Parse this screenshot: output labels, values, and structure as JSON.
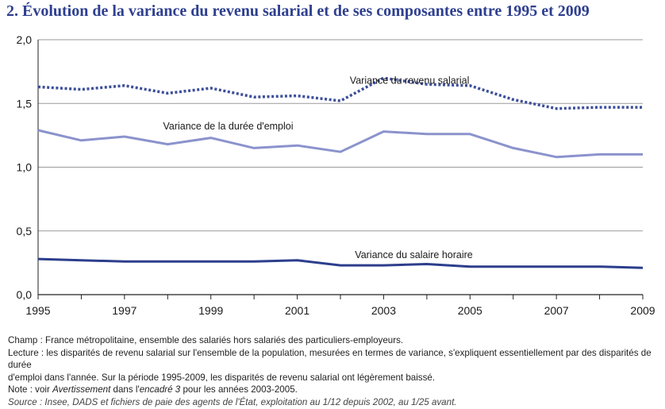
{
  "title": "2. Évolution de la variance du revenu salarial et de ses composantes entre 1995 et 2009",
  "chart_data": {
    "type": "line",
    "x": [
      1995,
      1996,
      1997,
      1998,
      1999,
      2000,
      2001,
      2002,
      2003,
      2004,
      2005,
      2006,
      2007,
      2008,
      2009
    ],
    "x_tick_labels": [
      "1995",
      "1997",
      "1999",
      "2001",
      "2003",
      "2005",
      "2007",
      "2009"
    ],
    "y_tick_labels": [
      "0,0",
      "0,5",
      "1,0",
      "1,5",
      "2,0"
    ],
    "ylim": [
      0,
      2
    ],
    "xlabel": "",
    "ylabel": "",
    "grid": "horizontal",
    "series": [
      {
        "name": "Variance du revenu salarial",
        "style": "dotted",
        "color": "#3d4f9a",
        "values": [
          1.63,
          1.61,
          1.64,
          1.58,
          1.62,
          1.55,
          1.56,
          1.52,
          1.7,
          1.65,
          1.64,
          1.53,
          1.46,
          1.47,
          1.47
        ]
      },
      {
        "name": "Variance de la durée d'emploi",
        "style": "solid",
        "color": "#8b93cc",
        "values": [
          1.29,
          1.21,
          1.24,
          1.18,
          1.23,
          1.15,
          1.17,
          1.12,
          1.28,
          1.26,
          1.26,
          1.15,
          1.08,
          1.1,
          1.1
        ]
      },
      {
        "name": "Variance du salaire horaire",
        "style": "solid",
        "color": "#2c3e8c",
        "values": [
          0.28,
          0.27,
          0.26,
          0.26,
          0.26,
          0.26,
          0.27,
          0.23,
          0.23,
          0.24,
          0.22,
          0.22,
          0.22,
          0.22,
          0.21
        ]
      }
    ]
  },
  "notes": {
    "champ": "Champ : France métropolitaine, ensemble des salariés hors salariés des particuliers-employeurs.",
    "lecture_1": "Lecture : les disparités de revenu salarial sur l'ensemble de la population, mesurées en termes de variance, s'expliquent essentiellement par des disparités de durée",
    "lecture_2": "d'emploi dans l'année. Sur la période 1995-2009, les disparités de revenu salarial ont légèrement baissé.",
    "note_prefix": "Note : voir ",
    "note_avert": "Avertissement",
    "note_mid": " dans l'",
    "note_encadre": "encadré 3",
    "note_suffix": " pour les années 2003-2005.",
    "source": "Source : Insee, DADS et fichiers de paie des agents de l'État, exploitation au 1/12 depuis 2002, au 1/25 avant."
  }
}
